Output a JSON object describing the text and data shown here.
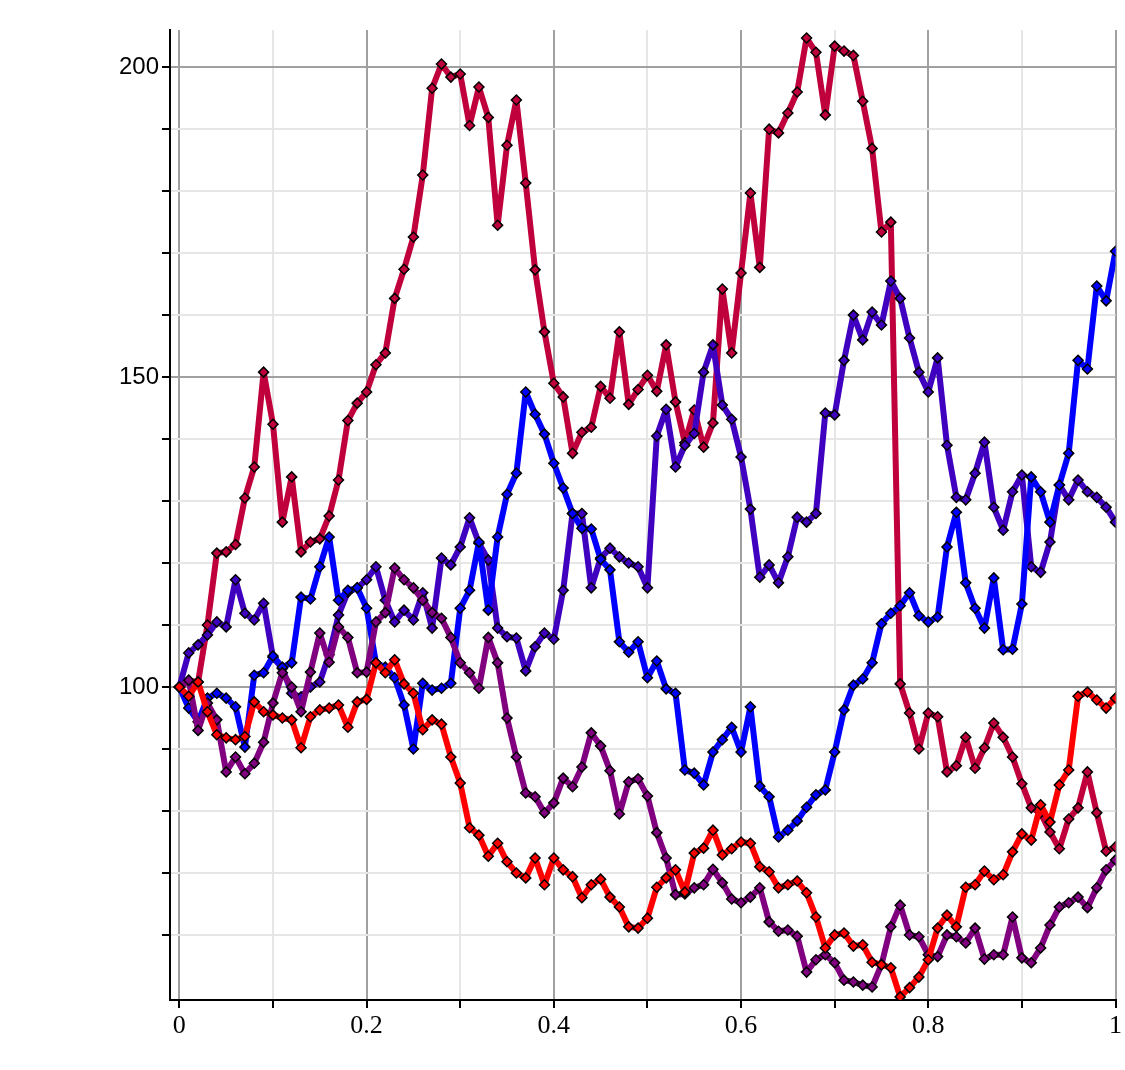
{
  "chart_data": {
    "type": "line",
    "marker": "diamond",
    "line_style": "solid",
    "grid": true,
    "xlim": [
      -0.01,
      1
    ],
    "ylim": [
      49.5,
      206
    ],
    "xticks": [
      0,
      {
        "value": 0.1,
        "label": null
      },
      0.2,
      {
        "value": 0.3,
        "label": null
      },
      0.4,
      {
        "value": 0.5,
        "label": null
      },
      0.6,
      {
        "value": 0.7,
        "label": null
      },
      0.8,
      {
        "value": 0.9,
        "label": null
      },
      1
    ],
    "yticks": [
      {
        "value": 60,
        "label": null
      },
      {
        "value": 70,
        "label": null
      },
      {
        "value": 80,
        "label": null
      },
      {
        "value": 90,
        "label": null
      },
      100,
      {
        "value": 110,
        "label": null
      },
      {
        "value": 120,
        "label": null
      },
      {
        "value": 130,
        "label": null
      },
      {
        "value": 140,
        "label": null
      },
      150,
      {
        "value": 160,
        "label": null
      },
      {
        "value": 170,
        "label": null
      },
      {
        "value": 180,
        "label": null
      },
      {
        "value": 190,
        "label": null
      },
      200
    ],
    "x": [
      0,
      0.01,
      0.02,
      0.03,
      0.04,
      0.05,
      0.06,
      0.07,
      0.08,
      0.09,
      0.1,
      0.11,
      0.12,
      0.13,
      0.14,
      0.15,
      0.16,
      0.17,
      0.18,
      0.19,
      0.2,
      0.21,
      0.22,
      0.23,
      0.24,
      0.25,
      0.26,
      0.27,
      0.28,
      0.29,
      0.3,
      0.31,
      0.32,
      0.33,
      0.34,
      0.35,
      0.36,
      0.37,
      0.38,
      0.39,
      0.4,
      0.41,
      0.42,
      0.43,
      0.44,
      0.45,
      0.46,
      0.47,
      0.48,
      0.49,
      0.5,
      0.51,
      0.52,
      0.53,
      0.54,
      0.55,
      0.56,
      0.57,
      0.58,
      0.59,
      0.6,
      0.61,
      0.62,
      0.63,
      0.64,
      0.65,
      0.66,
      0.67,
      0.68,
      0.69,
      0.7,
      0.71,
      0.72,
      0.73,
      0.74,
      0.75,
      0.76,
      0.77,
      0.78,
      0.79,
      0.8,
      0.81,
      0.82,
      0.83,
      0.84,
      0.85,
      0.86,
      0.87,
      0.88,
      0.89,
      0.9,
      0.91,
      0.92,
      0.93,
      0.94,
      0.95,
      0.96,
      0.97,
      0.98,
      0.99,
      1
    ],
    "series": [
      {
        "color": "#ff0000",
        "values": [
          100,
          98.5,
          100.8,
          96,
          92.3,
          91.8,
          91.5,
          92,
          97.6,
          96,
          95.5,
          95,
          94.7,
          90.2,
          95.2,
          96.3,
          96.6,
          97.1,
          93.5,
          97.6,
          98,
          103.9,
          102.3,
          104.4,
          100.5,
          99,
          93.1,
          94.7,
          94,
          88.7,
          84.5,
          77.3,
          76.1,
          72.7,
          74.8,
          71.8,
          70,
          69.2,
          72.4,
          68.1,
          72.4,
          70.5,
          69.4,
          66,
          68.1,
          69,
          66.1,
          64.5,
          61.3,
          61.1,
          62.7,
          67.7,
          69.2,
          70.5,
          66.9,
          73.2,
          74,
          76.9,
          72.9,
          73.9,
          75,
          74.8,
          71,
          70.2,
          67.6,
          68.1,
          68.7,
          66.8,
          62.9,
          57.9,
          60,
          60.3,
          58.2,
          58.4,
          55.6,
          55.2,
          54.7,
          50,
          51.5,
          53.2,
          56,
          61.1,
          63.2,
          61.3,
          67.7,
          68.1,
          70.3,
          68.9,
          69.7,
          73.4,
          76.3,
          75.3,
          81,
          78.2,
          84.2,
          86.6,
          98.5,
          99.2,
          97.9,
          96.6,
          98.2
        ]
      },
      {
        "color": "#800080",
        "values": [
          100,
          101.1,
          93,
          97.4,
          94.7,
          86.3,
          88.7,
          86,
          87.7,
          91.1,
          97.4,
          102.3,
          100,
          96,
          102.4,
          108.7,
          104,
          109.7,
          108,
          102.3,
          102.4,
          110.5,
          112,
          119.2,
          117.3,
          116,
          114,
          112,
          111.1,
          108,
          103.9,
          102.3,
          99.8,
          108,
          103.9,
          95,
          88.7,
          82.9,
          82.3,
          79.7,
          81.3,
          85.3,
          83.9,
          87.1,
          92.6,
          90.5,
          86.5,
          79.5,
          84.7,
          85.2,
          82.4,
          76.5,
          72.4,
          66.5,
          66.6,
          67.6,
          68.1,
          70.6,
          68.4,
          65.8,
          65.2,
          66.1,
          67.6,
          62.1,
          60.6,
          60.8,
          59.8,
          54,
          56,
          56.8,
          55.5,
          52.7,
          52.4,
          51.9,
          51.6,
          55.2,
          61.3,
          64.8,
          60,
          59.7,
          56.8,
          56.5,
          60,
          59.7,
          58.7,
          61.1,
          56.1,
          56.8,
          56.8,
          62.9,
          56.3,
          55.5,
          57.9,
          61.6,
          64.5,
          65.2,
          66.1,
          64.4,
          67.6,
          70.5,
          72.1
        ]
      },
      {
        "color": "#0000ff",
        "values": [
          100,
          96.6,
          94.4,
          98.2,
          99,
          98.2,
          96.8,
          90.3,
          101.9,
          102.3,
          105,
          103.2,
          103.9,
          114.5,
          114.2,
          119.4,
          124.2,
          114,
          115.6,
          116,
          112.7,
          103.9,
          103.2,
          101.5,
          97.1,
          90,
          100.6,
          99.5,
          99.8,
          100.6,
          112.7,
          115.6,
          123.4,
          112.4,
          124.2,
          131.1,
          134.5,
          147.6,
          144,
          140.8,
          136.1,
          132.1,
          128,
          125.6,
          125.5,
          120.6,
          118.9,
          107.3,
          105.6,
          107.3,
          101.5,
          104.2,
          99.7,
          99,
          86.6,
          86.1,
          84.2,
          89.5,
          91.5,
          93.5,
          89.5,
          96.8,
          84,
          82.3,
          75.8,
          76.9,
          78.4,
          80.6,
          82.6,
          83.4,
          89.5,
          96.3,
          100.3,
          101.3,
          103.9,
          110.2,
          111.9,
          113.1,
          115.2,
          111.5,
          110.5,
          111.3,
          122.6,
          128.2,
          116.8,
          112.7,
          109.5,
          117.6,
          106,
          106.1,
          113.4,
          133.9,
          131.5,
          126.6,
          132.6,
          137.7,
          152.7,
          151.3,
          164.7,
          162.3,
          170.3
        ]
      },
      {
        "color": "#4000c0",
        "values": [
          100,
          105.5,
          106.8,
          108.4,
          110.5,
          109.7,
          117.3,
          111.9,
          110.8,
          113.5,
          104.8,
          103,
          99,
          98.4,
          100,
          100.8,
          105.2,
          111.6,
          115.3,
          116,
          117.3,
          119.4,
          114,
          110.5,
          112.4,
          110.8,
          115.2,
          109.5,
          120.8,
          119.7,
          122.6,
          127.3,
          123.2,
          120.5,
          109.5,
          108.1,
          107.9,
          102.6,
          106.5,
          108.7,
          107.7,
          115.6,
          128,
          128,
          116,
          120.8,
          122.4,
          121,
          120,
          119.4,
          116,
          140.5,
          144.8,
          135.5,
          139,
          140.9,
          150.8,
          155.2,
          145.5,
          143.2,
          137.1,
          128.7,
          117.7,
          119.7,
          116.8,
          121,
          127.4,
          126.6,
          128,
          144.2,
          143.9,
          152.7,
          160,
          156,
          160.5,
          158.4,
          165.5,
          162.7,
          156.3,
          150.8,
          147.6,
          153.1,
          139,
          130.6,
          130.2,
          134.5,
          139.5,
          129,
          125.3,
          131.5,
          134.2,
          119.4,
          118.5,
          123.4,
          132.6,
          130.2,
          133.4,
          131.5,
          130.6,
          129,
          126.6
        ]
      },
      {
        "color": "#c0003c",
        "values": [
          100,
          101,
          100.8,
          110,
          121.6,
          121.8,
          123,
          130.5,
          135.5,
          150.8,
          142.4,
          126.6,
          133.9,
          121.8,
          123.4,
          123.9,
          127.6,
          133.4,
          143,
          145.8,
          147.6,
          152,
          153.9,
          162.7,
          167.4,
          172.6,
          182.6,
          196.6,
          200.5,
          198.4,
          198.9,
          190.6,
          196.8,
          191.9,
          174.5,
          187.4,
          194.7,
          181.3,
          167.3,
          157.3,
          149,
          146.8,
          137.7,
          141.1,
          141.9,
          148.5,
          146.6,
          157.3,
          145.6,
          148,
          150.3,
          147.7,
          155.2,
          146,
          139.4,
          144.7,
          138.7,
          142.6,
          164.2,
          153.9,
          166.8,
          179.7,
          167.7,
          190,
          189.4,
          192.6,
          196,
          204.7,
          202.4,
          192.3,
          203.4,
          202.6,
          201.9,
          194.5,
          186.9,
          173.4,
          175,
          100.5,
          95.8,
          90,
          95.8,
          95.2,
          86.3,
          87.3,
          91.9,
          86.9,
          90.2,
          94.2,
          91.9,
          88.7,
          84.4,
          80.5,
          79.7,
          76.6,
          73.9,
          78.7,
          80.5,
          86.3,
          79.7,
          73.5,
          74.2
        ]
      }
    ]
  }
}
